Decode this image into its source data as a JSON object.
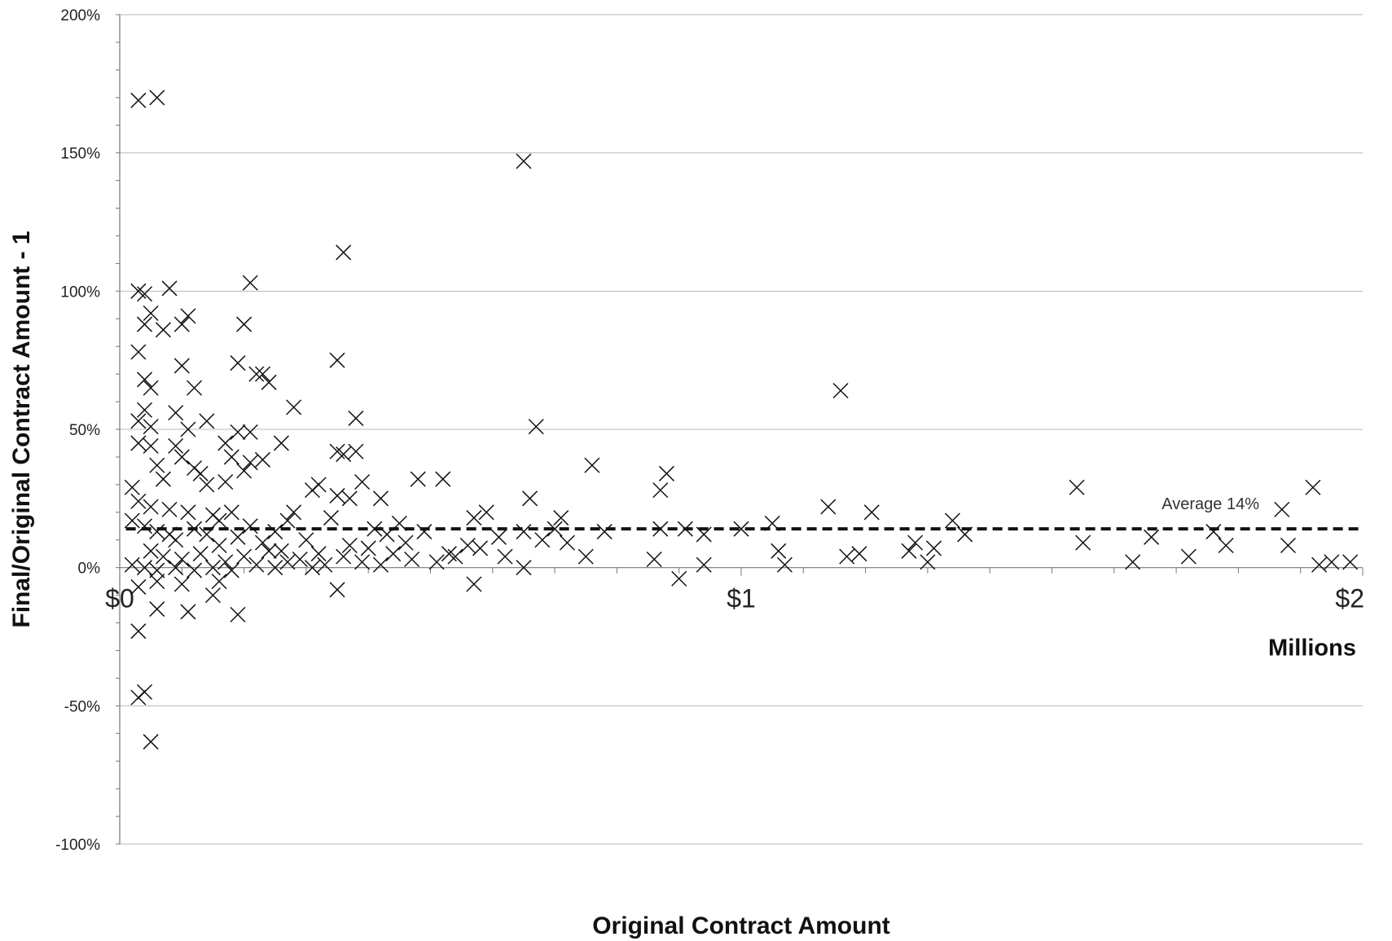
{
  "chart_data": {
    "type": "scatter",
    "xlabel": "Original Contract Amount",
    "ylabel": "Final/Original Contract Amount - 1",
    "x_unit_label": "Millions",
    "xlim": [
      0,
      2
    ],
    "ylim": [
      -100,
      200
    ],
    "x_ticks": [
      {
        "value": 0,
        "label": "$0"
      },
      {
        "value": 1,
        "label": "$1"
      },
      {
        "value": 2,
        "label": "$2"
      }
    ],
    "y_ticks": [
      {
        "value": 200,
        "label": "200%"
      },
      {
        "value": 150,
        "label": "150%"
      },
      {
        "value": 100,
        "label": "100%"
      },
      {
        "value": 50,
        "label": "50%"
      },
      {
        "value": 0,
        "label": "0%"
      },
      {
        "value": -50,
        "label": "-50%"
      },
      {
        "value": -100,
        "label": "-100%"
      }
    ],
    "grid": "horizontal",
    "marker": "x",
    "average_line": {
      "value": 14,
      "x_range": [
        0.01,
        2.0
      ],
      "label": "Average 14%",
      "style": "dashed"
    },
    "points": [
      [
        0.03,
        169
      ],
      [
        0.06,
        170
      ],
      [
        0.65,
        147
      ],
      [
        0.36,
        114
      ],
      [
        0.21,
        103
      ],
      [
        0.08,
        101
      ],
      [
        0.03,
        100
      ],
      [
        0.04,
        99
      ],
      [
        0.05,
        92
      ],
      [
        0.11,
        91
      ],
      [
        0.04,
        88
      ],
      [
        0.1,
        88
      ],
      [
        0.2,
        88
      ],
      [
        0.07,
        86
      ],
      [
        0.03,
        78
      ],
      [
        0.35,
        75
      ],
      [
        0.19,
        74
      ],
      [
        0.1,
        73
      ],
      [
        0.22,
        70
      ],
      [
        0.23,
        70
      ],
      [
        0.04,
        68
      ],
      [
        0.05,
        65
      ],
      [
        0.12,
        65
      ],
      [
        0.24,
        67
      ],
      [
        1.16,
        64
      ],
      [
        0.28,
        58
      ],
      [
        0.04,
        57
      ],
      [
        0.09,
        56
      ],
      [
        0.03,
        53
      ],
      [
        0.05,
        51
      ],
      [
        0.14,
        53
      ],
      [
        0.38,
        54
      ],
      [
        0.67,
        51
      ],
      [
        0.11,
        50
      ],
      [
        0.19,
        49
      ],
      [
        0.21,
        49
      ],
      [
        0.03,
        45
      ],
      [
        0.05,
        44
      ],
      [
        0.09,
        44
      ],
      [
        0.17,
        45
      ],
      [
        0.26,
        45
      ],
      [
        0.35,
        42
      ],
      [
        0.36,
        41
      ],
      [
        0.38,
        42
      ],
      [
        0.1,
        40
      ],
      [
        0.18,
        40
      ],
      [
        0.21,
        38
      ],
      [
        0.23,
        39
      ],
      [
        0.06,
        37
      ],
      [
        0.12,
        36
      ],
      [
        0.13,
        34
      ],
      [
        0.2,
        35
      ],
      [
        0.76,
        37
      ],
      [
        0.88,
        34
      ],
      [
        0.07,
        32
      ],
      [
        0.14,
        30
      ],
      [
        0.17,
        31
      ],
      [
        0.32,
        30
      ],
      [
        0.39,
        31
      ],
      [
        0.48,
        32
      ],
      [
        0.52,
        32
      ],
      [
        0.02,
        29
      ],
      [
        0.31,
        28
      ],
      [
        0.35,
        26
      ],
      [
        0.37,
        25
      ],
      [
        0.42,
        25
      ],
      [
        0.66,
        25
      ],
      [
        0.87,
        28
      ],
      [
        1.54,
        29
      ],
      [
        1.92,
        29
      ],
      [
        0.03,
        24
      ],
      [
        0.05,
        22
      ],
      [
        0.08,
        21
      ],
      [
        0.11,
        20
      ],
      [
        0.15,
        19
      ],
      [
        0.16,
        17
      ],
      [
        0.18,
        20
      ],
      [
        0.27,
        17
      ],
      [
        0.28,
        20
      ],
      [
        0.34,
        18
      ],
      [
        0.57,
        18
      ],
      [
        0.59,
        20
      ],
      [
        0.71,
        18
      ],
      [
        1.14,
        22
      ],
      [
        1.21,
        20
      ],
      [
        1.87,
        21
      ],
      [
        1.34,
        17
      ],
      [
        0.02,
        17
      ],
      [
        0.04,
        15
      ],
      [
        0.06,
        13
      ],
      [
        0.08,
        12
      ],
      [
        0.09,
        10
      ],
      [
        0.12,
        14
      ],
      [
        0.14,
        12
      ],
      [
        0.16,
        8
      ],
      [
        0.19,
        11
      ],
      [
        0.21,
        15
      ],
      [
        0.23,
        9
      ],
      [
        0.25,
        13
      ],
      [
        0.26,
        6
      ],
      [
        0.3,
        10
      ],
      [
        0.32,
        5
      ],
      [
        0.37,
        8
      ],
      [
        0.4,
        7
      ],
      [
        0.41,
        14
      ],
      [
        0.43,
        12
      ],
      [
        0.45,
        16
      ],
      [
        0.46,
        9
      ],
      [
        0.49,
        13
      ],
      [
        0.53,
        5
      ],
      [
        0.56,
        8
      ],
      [
        0.61,
        11
      ],
      [
        0.65,
        13
      ],
      [
        0.68,
        10
      ],
      [
        0.7,
        14
      ],
      [
        0.72,
        9
      ],
      [
        0.78,
        13
      ],
      [
        0.87,
        14
      ],
      [
        0.91,
        14
      ],
      [
        0.94,
        12
      ],
      [
        1.0,
        14
      ],
      [
        1.05,
        16
      ],
      [
        1.06,
        6
      ],
      [
        1.28,
        9
      ],
      [
        1.31,
        7
      ],
      [
        1.36,
        12
      ],
      [
        1.55,
        9
      ],
      [
        1.66,
        11
      ],
      [
        1.76,
        13
      ],
      [
        1.78,
        8
      ],
      [
        1.88,
        8
      ],
      [
        0.05,
        6
      ],
      [
        0.07,
        4
      ],
      [
        0.1,
        3
      ],
      [
        0.13,
        5
      ],
      [
        0.17,
        2
      ],
      [
        0.2,
        4
      ],
      [
        0.22,
        1
      ],
      [
        0.24,
        6
      ],
      [
        0.27,
        2
      ],
      [
        0.29,
        3
      ],
      [
        0.33,
        1
      ],
      [
        0.36,
        4
      ],
      [
        0.39,
        2
      ],
      [
        0.42,
        1
      ],
      [
        0.44,
        5
      ],
      [
        0.47,
        3
      ],
      [
        0.51,
        2
      ],
      [
        0.54,
        4
      ],
      [
        0.58,
        7
      ],
      [
        0.62,
        4
      ],
      [
        0.65,
        0
      ],
      [
        0.75,
        4
      ],
      [
        0.86,
        3
      ],
      [
        0.94,
        1
      ],
      [
        1.07,
        1
      ],
      [
        1.17,
        4
      ],
      [
        1.19,
        5
      ],
      [
        1.27,
        6
      ],
      [
        1.3,
        2
      ],
      [
        1.63,
        2
      ],
      [
        1.72,
        4
      ],
      [
        1.93,
        1
      ],
      [
        1.95,
        2
      ],
      [
        1.98,
        2
      ],
      [
        0.02,
        1
      ],
      [
        0.04,
        0
      ],
      [
        0.06,
        -1
      ],
      [
        0.09,
        0
      ],
      [
        0.12,
        -1
      ],
      [
        0.15,
        0
      ],
      [
        0.18,
        -1
      ],
      [
        0.25,
        0
      ],
      [
        0.31,
        0
      ],
      [
        0.03,
        -7
      ],
      [
        0.06,
        -5
      ],
      [
        0.1,
        -6
      ],
      [
        0.15,
        -10
      ],
      [
        0.16,
        -5
      ],
      [
        0.35,
        -8
      ],
      [
        0.19,
        -17
      ],
      [
        0.06,
        -15
      ],
      [
        0.11,
        -16
      ],
      [
        0.57,
        -6
      ],
      [
        0.9,
        -4
      ],
      [
        0.03,
        -23
      ],
      [
        0.04,
        -45
      ],
      [
        0.03,
        -47
      ],
      [
        0.05,
        -63
      ]
    ]
  }
}
